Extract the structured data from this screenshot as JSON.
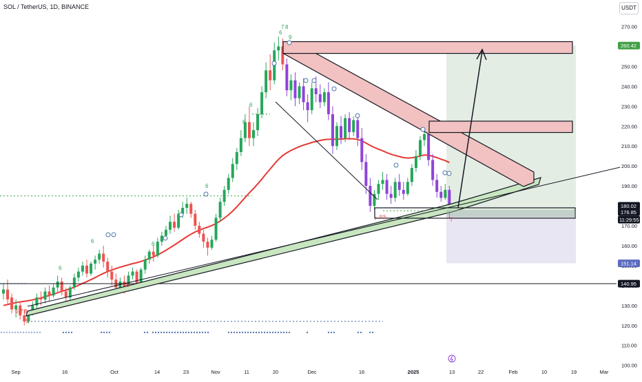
{
  "chart_data": {
    "type": "candlestick",
    "title": "SOL / TetherUS, 1D, BINANCE",
    "currency": "USDT",
    "ylim": [
      97,
      279
    ],
    "y_ticks": [
      100,
      110,
      120,
      130,
      140,
      150,
      160,
      170,
      180,
      190,
      200,
      210,
      220,
      230,
      240,
      250,
      260,
      270
    ],
    "y_tick_labels": [
      "100.00",
      "110.00",
      "120.00",
      "130.00",
      "140.00",
      "150.00",
      "160.00",
      "170.00",
      "180.00",
      "190.00",
      "200.00",
      "210.00",
      "220.00",
      "230.00",
      "240.00",
      "250.00",
      "260.00",
      "270.00"
    ],
    "x_ticks": [
      "Sep",
      "16",
      "Oct",
      "14",
      "23",
      "Nov",
      "11",
      "20",
      "Dec",
      "16",
      "2025",
      "13",
      "22",
      "Feb",
      "10",
      "19",
      "Mar"
    ],
    "price_labels": [
      {
        "value": 260.42,
        "label": "260.42",
        "color": "#43a047"
      },
      {
        "value": 180.02,
        "label": "180.02",
        "color": "#131722"
      },
      {
        "value": 176.85,
        "label": "176.85",
        "color": "#131722"
      },
      {
        "value": 151.14,
        "label": "151.14",
        "color": "#5c6bc0"
      },
      {
        "value": 140.95,
        "label": "140.95",
        "color": "#131722"
      }
    ],
    "countdown": "11:29:55",
    "candles": [
      {
        "o": 136,
        "h": 141,
        "c": 138,
        "l": 133
      },
      {
        "o": 138,
        "h": 143,
        "c": 133,
        "l": 131
      },
      {
        "o": 134,
        "h": 136,
        "c": 128,
        "l": 126
      },
      {
        "o": 128,
        "h": 133,
        "c": 130,
        "l": 124
      },
      {
        "o": 130,
        "h": 132,
        "c": 125,
        "l": 123
      },
      {
        "o": 125,
        "h": 128,
        "c": 122,
        "l": 120
      },
      {
        "o": 122,
        "h": 127,
        "c": 126,
        "l": 121
      },
      {
        "o": 126,
        "h": 132,
        "c": 130,
        "l": 125
      },
      {
        "o": 130,
        "h": 136,
        "c": 134,
        "l": 128
      },
      {
        "o": 134,
        "h": 137,
        "c": 133,
        "l": 130
      },
      {
        "o": 133,
        "h": 139,
        "c": 137,
        "l": 131
      },
      {
        "o": 137,
        "h": 140,
        "c": 135,
        "l": 132
      },
      {
        "o": 135,
        "h": 141,
        "c": 139,
        "l": 134
      },
      {
        "o": 139,
        "h": 145,
        "c": 142,
        "l": 137
      },
      {
        "o": 142,
        "h": 144,
        "c": 137,
        "l": 135
      },
      {
        "o": 137,
        "h": 139,
        "c": 134,
        "l": 130
      },
      {
        "o": 134,
        "h": 140,
        "c": 139,
        "l": 132
      },
      {
        "o": 139,
        "h": 146,
        "c": 144,
        "l": 138
      },
      {
        "o": 144,
        "h": 149,
        "c": 147,
        "l": 142
      },
      {
        "o": 147,
        "h": 152,
        "c": 150,
        "l": 145
      },
      {
        "o": 150,
        "h": 153,
        "c": 146,
        "l": 144
      },
      {
        "o": 146,
        "h": 152,
        "c": 151,
        "l": 145
      },
      {
        "o": 151,
        "h": 155,
        "c": 153,
        "l": 148
      },
      {
        "o": 153,
        "h": 158,
        "c": 156,
        "l": 151
      },
      {
        "o": 156,
        "h": 160,
        "c": 152,
        "l": 149
      },
      {
        "o": 152,
        "h": 154,
        "c": 147,
        "l": 144
      },
      {
        "o": 147,
        "h": 150,
        "c": 143,
        "l": 140
      },
      {
        "o": 143,
        "h": 146,
        "c": 139,
        "l": 136
      },
      {
        "o": 139,
        "h": 144,
        "c": 142,
        "l": 137
      },
      {
        "o": 142,
        "h": 145,
        "c": 138,
        "l": 136
      },
      {
        "o": 138,
        "h": 147,
        "c": 145,
        "l": 137
      },
      {
        "o": 145,
        "h": 149,
        "c": 147,
        "l": 143
      },
      {
        "o": 147,
        "h": 148,
        "c": 141,
        "l": 139
      },
      {
        "o": 141,
        "h": 149,
        "c": 148,
        "l": 140
      },
      {
        "o": 148,
        "h": 155,
        "c": 153,
        "l": 146
      },
      {
        "o": 153,
        "h": 158,
        "c": 157,
        "l": 151
      },
      {
        "o": 157,
        "h": 160,
        "c": 155,
        "l": 152
      },
      {
        "o": 155,
        "h": 164,
        "c": 162,
        "l": 154
      },
      {
        "o": 162,
        "h": 167,
        "c": 165,
        "l": 160
      },
      {
        "o": 165,
        "h": 170,
        "c": 168,
        "l": 163
      },
      {
        "o": 168,
        "h": 175,
        "c": 172,
        "l": 166
      },
      {
        "o": 172,
        "h": 176,
        "c": 169,
        "l": 167
      },
      {
        "o": 169,
        "h": 178,
        "c": 176,
        "l": 168
      },
      {
        "o": 176,
        "h": 182,
        "c": 179,
        "l": 174
      },
      {
        "o": 179,
        "h": 184,
        "c": 181,
        "l": 176
      },
      {
        "o": 181,
        "h": 182,
        "c": 176,
        "l": 174
      },
      {
        "o": 176,
        "h": 178,
        "c": 170,
        "l": 168
      },
      {
        "o": 170,
        "h": 172,
        "c": 166,
        "l": 164
      },
      {
        "o": 166,
        "h": 168,
        "c": 162,
        "l": 159
      },
      {
        "o": 162,
        "h": 164,
        "c": 159,
        "l": 155
      },
      {
        "o": 159,
        "h": 165,
        "c": 163,
        "l": 158
      },
      {
        "o": 163,
        "h": 176,
        "c": 174,
        "l": 162
      },
      {
        "o": 174,
        "h": 184,
        "c": 182,
        "l": 172
      },
      {
        "o": 182,
        "h": 190,
        "c": 188,
        "l": 180
      },
      {
        "o": 188,
        "h": 196,
        "c": 194,
        "l": 186
      },
      {
        "o": 194,
        "h": 204,
        "c": 201,
        "l": 192
      },
      {
        "o": 201,
        "h": 209,
        "c": 207,
        "l": 198
      },
      {
        "o": 207,
        "h": 218,
        "c": 214,
        "l": 205
      },
      {
        "o": 214,
        "h": 226,
        "c": 222,
        "l": 212
      },
      {
        "o": 222,
        "h": 230,
        "c": 214,
        "l": 210
      },
      {
        "o": 214,
        "h": 222,
        "c": 218,
        "l": 210
      },
      {
        "o": 218,
        "h": 229,
        "c": 226,
        "l": 215
      },
      {
        "o": 226,
        "h": 240,
        "c": 237,
        "l": 224
      },
      {
        "o": 237,
        "h": 252,
        "c": 248,
        "l": 234
      },
      {
        "o": 248,
        "h": 256,
        "c": 243,
        "l": 238
      },
      {
        "o": 243,
        "h": 262,
        "c": 258,
        "l": 241
      },
      {
        "o": 258,
        "h": 265,
        "c": 260,
        "l": 253
      },
      {
        "o": 260,
        "h": 264,
        "c": 251,
        "l": 248
      },
      {
        "o": 251,
        "h": 254,
        "c": 238,
        "l": 235
      },
      {
        "o": 238,
        "h": 246,
        "c": 243,
        "l": 233
      },
      {
        "o": 243,
        "h": 247,
        "c": 234,
        "l": 230
      },
      {
        "o": 234,
        "h": 242,
        "c": 240,
        "l": 231
      },
      {
        "o": 240,
        "h": 244,
        "c": 232,
        "l": 228
      },
      {
        "o": 232,
        "h": 236,
        "c": 228,
        "l": 222
      },
      {
        "o": 228,
        "h": 242,
        "c": 239,
        "l": 226
      },
      {
        "o": 239,
        "h": 245,
        "c": 236,
        "l": 232
      },
      {
        "o": 236,
        "h": 241,
        "c": 232,
        "l": 229
      },
      {
        "o": 232,
        "h": 239,
        "c": 237,
        "l": 230
      },
      {
        "o": 237,
        "h": 242,
        "c": 226,
        "l": 223
      },
      {
        "o": 226,
        "h": 230,
        "c": 210,
        "l": 206
      },
      {
        "o": 210,
        "h": 222,
        "c": 220,
        "l": 208
      },
      {
        "o": 220,
        "h": 225,
        "c": 214,
        "l": 211
      },
      {
        "o": 214,
        "h": 226,
        "c": 224,
        "l": 212
      },
      {
        "o": 224,
        "h": 227,
        "c": 217,
        "l": 213
      },
      {
        "o": 217,
        "h": 225,
        "c": 223,
        "l": 215
      },
      {
        "o": 223,
        "h": 226,
        "c": 214,
        "l": 210
      },
      {
        "o": 214,
        "h": 219,
        "c": 202,
        "l": 198
      },
      {
        "o": 202,
        "h": 206,
        "c": 190,
        "l": 186
      },
      {
        "o": 190,
        "h": 194,
        "c": 180,
        "l": 177
      },
      {
        "o": 180,
        "h": 188,
        "c": 186,
        "l": 178
      },
      {
        "o": 186,
        "h": 193,
        "c": 191,
        "l": 183
      },
      {
        "o": 191,
        "h": 197,
        "c": 193,
        "l": 188
      },
      {
        "o": 193,
        "h": 196,
        "c": 186,
        "l": 183
      },
      {
        "o": 186,
        "h": 190,
        "c": 184,
        "l": 181
      },
      {
        "o": 184,
        "h": 194,
        "c": 192,
        "l": 182
      },
      {
        "o": 192,
        "h": 196,
        "c": 188,
        "l": 185
      },
      {
        "o": 188,
        "h": 192,
        "c": 186,
        "l": 183
      },
      {
        "o": 186,
        "h": 194,
        "c": 192,
        "l": 185
      },
      {
        "o": 192,
        "h": 201,
        "c": 199,
        "l": 190
      },
      {
        "o": 199,
        "h": 208,
        "c": 205,
        "l": 197
      },
      {
        "o": 205,
        "h": 215,
        "c": 213,
        "l": 203
      },
      {
        "o": 213,
        "h": 219,
        "c": 216,
        "l": 210
      },
      {
        "o": 216,
        "h": 218,
        "c": 203,
        "l": 200
      },
      {
        "o": 203,
        "h": 206,
        "c": 193,
        "l": 190
      },
      {
        "o": 193,
        "h": 196,
        "c": 187,
        "l": 184
      },
      {
        "o": 187,
        "h": 190,
        "c": 184,
        "l": 182
      },
      {
        "o": 184,
        "h": 191,
        "c": 188,
        "l": 183
      },
      {
        "o": 188,
        "h": 190,
        "c": 177,
        "l": 174
      }
    ],
    "ma_line": [
      130,
      130.5,
      131,
      131.4,
      131.8,
      132.1,
      132.4,
      132.8,
      133.3,
      133.8,
      134.4,
      135,
      135.7,
      136.4,
      137.1,
      137.7,
      138.4,
      139.2,
      140.1,
      141.1,
      142,
      143,
      144,
      145.1,
      146.1,
      147,
      147.8,
      148.5,
      149.2,
      149.8,
      150.4,
      151,
      151.5,
      152.1,
      152.8,
      153.6,
      154.4,
      155.4,
      156.5,
      157.7,
      159,
      160.3,
      161.7,
      163.1,
      164.5,
      165.8,
      166.9,
      167.8,
      168.6,
      169.3,
      170.1,
      171.1,
      172.3,
      173.8,
      175.5,
      177.4,
      179.5,
      181.8,
      184.2,
      186.5,
      188.7,
      191,
      193.4,
      196,
      198.5,
      201,
      203.3,
      205.2,
      206.6,
      207.8,
      208.8,
      209.7,
      210.5,
      211.1,
      211.8,
      212.3,
      212.8,
      213.2,
      213.4,
      213.4,
      213.5,
      213.5,
      213.7,
      213.7,
      213.6,
      213.3,
      212.6,
      211.5,
      210.3,
      209.3,
      208.4,
      207.6,
      206.7,
      205.9,
      205.3,
      204.7,
      204.2,
      204,
      204.1,
      204.5,
      205,
      205.5,
      205.4,
      204.9,
      204.2,
      203.4,
      202.7,
      201.7
    ],
    "annotations": {
      "green_digits": [
        "6",
        "6",
        "6",
        "6",
        "6",
        "6",
        "6",
        "7",
        "8",
        "7",
        "8",
        "9"
      ],
      "red_digits": [
        "6",
        "7",
        "8",
        "9",
        "6",
        "7",
        "8",
        "9",
        "7"
      ]
    }
  }
}
